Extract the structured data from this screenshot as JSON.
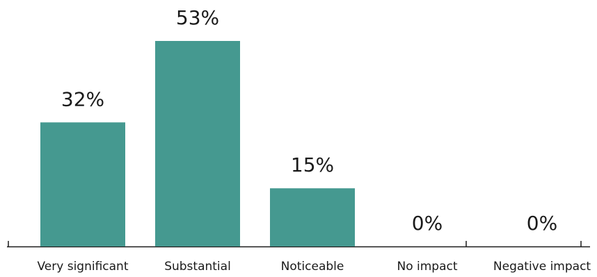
{
  "chart_data": {
    "type": "bar",
    "categories": [
      "Very significant",
      "Substantial",
      "Noticeable",
      "No impact",
      "Negative impact"
    ],
    "values": [
      32,
      53,
      15,
      0,
      0
    ],
    "value_labels": [
      "32%",
      "53%",
      "15%",
      "0%",
      "0%"
    ],
    "ylim": [
      0,
      53
    ],
    "grid": false,
    "legend": "none",
    "colors": {
      "bar": "#459990",
      "axis": "#1a1a1a",
      "text": "#1a1a1a"
    }
  }
}
